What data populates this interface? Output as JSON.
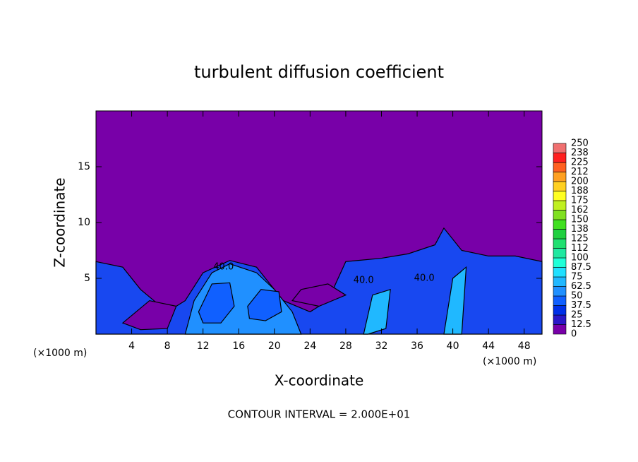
{
  "chart_data": {
    "type": "contour",
    "title": "turbulent diffusion coefficient",
    "x_label": "X-coordinate",
    "y_label": "Z-coordinate",
    "x_unit": "(×1000 m)",
    "footer": "CONTOUR INTERVAL = 2.000E+01",
    "xlim": [
      0,
      50
    ],
    "ylim": [
      0,
      20
    ],
    "xticks": [
      4,
      8,
      12,
      16,
      20,
      24,
      28,
      32,
      36,
      40,
      44,
      48
    ],
    "yticks": [
      5,
      10,
      15
    ],
    "background_color": "#7800a8",
    "colorbar": {
      "levels": [
        0,
        12.5,
        25,
        37.5,
        50,
        62.5,
        75,
        87.5,
        100,
        112,
        125,
        138,
        150,
        162,
        175,
        188,
        200,
        212,
        225,
        238,
        250
      ],
      "colors": [
        "#7800a8",
        "#2a18c8",
        "#0030e8",
        "#1060ff",
        "#2090ff",
        "#20b8ff",
        "#20e0ff",
        "#20ffd8",
        "#20e8a0",
        "#20e070",
        "#20d040",
        "#40e020",
        "#80e020",
        "#c0f020",
        "#ffff20",
        "#ffd020",
        "#ffa020",
        "#ff6020",
        "#ff2020",
        "#f07070"
      ]
    },
    "regions": [
      {
        "value": 25,
        "color": "#1848f0",
        "x": [
          0,
          3,
          5,
          8,
          10,
          12,
          15,
          18,
          21,
          24,
          26,
          28,
          32,
          35,
          38,
          39,
          41,
          44,
          47,
          50,
          50,
          0
        ],
        "z": [
          6.5,
          6,
          4,
          2,
          3,
          5.5,
          6.6,
          6,
          3,
          2,
          3,
          6.5,
          6.8,
          7.2,
          8,
          9.5,
          7.5,
          7,
          7,
          6.5,
          0,
          0
        ]
      },
      {
        "value": 0,
        "color": "#7800a8",
        "x": [
          3,
          6,
          9,
          8,
          5,
          3
        ],
        "z": [
          1,
          3,
          2.5,
          0.5,
          0.4,
          1
        ]
      },
      {
        "value": 0,
        "color": "#7800a8",
        "x": [
          22,
          25,
          28,
          26,
          23
        ],
        "z": [
          3,
          2.5,
          3.5,
          4.5,
          4
        ]
      },
      {
        "value": 50,
        "color": "#2090ff",
        "x": [
          10,
          11,
          13,
          15,
          18,
          20,
          22,
          23
        ],
        "z": [
          0,
          3,
          5.5,
          6.3,
          5.5,
          4,
          2,
          0
        ]
      },
      {
        "value": 37.5,
        "color": "#1060ff",
        "x": [
          11.5,
          13,
          15,
          15.5,
          14,
          12
        ],
        "z": [
          2,
          4.5,
          4.6,
          2.5,
          1,
          1
        ]
      },
      {
        "value": 37.5,
        "color": "#1060ff",
        "x": [
          17,
          18.5,
          20.5,
          20.8,
          19,
          17.2
        ],
        "z": [
          2.5,
          4,
          3.8,
          2,
          1.2,
          1.4
        ]
      },
      {
        "value": 62.5,
        "color": "#20b8ff",
        "x": [
          30,
          31,
          33,
          32.5,
          30.5
        ],
        "z": [
          0,
          3.5,
          4,
          0.5,
          0
        ]
      },
      {
        "value": 62.5,
        "color": "#20b8ff",
        "x": [
          39,
          40,
          41.5,
          41,
          39.5
        ],
        "z": [
          0,
          5,
          6,
          0,
          0
        ]
      }
    ],
    "contour_labels": [
      {
        "text": "40.0",
        "x": 14.3,
        "z": 6
      },
      {
        "text": "40.0",
        "x": 30,
        "z": 4.8
      },
      {
        "text": "40.0",
        "x": 36.8,
        "z": 5
      }
    ]
  }
}
